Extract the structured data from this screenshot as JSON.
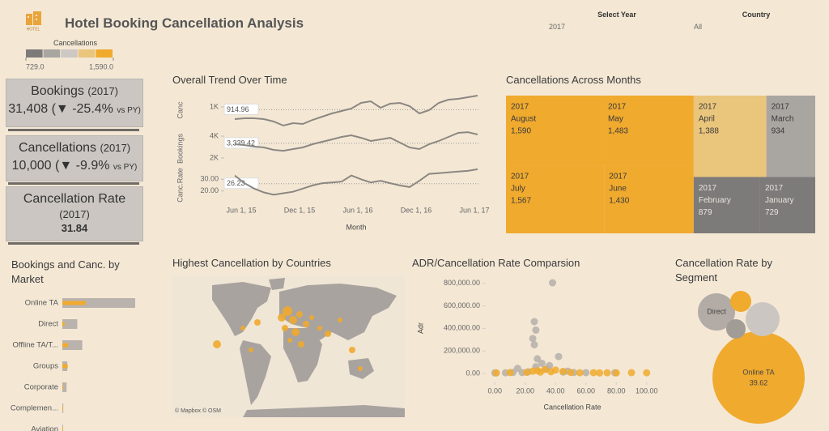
{
  "header": {
    "logo": "HOTEL",
    "title": "Hotel Booking Cancellation Analysis"
  },
  "filters": [
    {
      "label": "Select Year",
      "value": "2017"
    },
    {
      "label": "Country",
      "value": "All"
    }
  ],
  "color_legend": {
    "title": "Cancellations",
    "colors": [
      "#7d7b79",
      "#a9a5a1",
      "#cdc8c3",
      "#eac57c",
      "#f0aa2e"
    ],
    "range": [
      {
        "value": 729,
        "label": "729.0"
      },
      {
        "value": 1590,
        "label": "1,590.0"
      }
    ]
  },
  "kpis": [
    {
      "title": "Bookings",
      "period": "(2017)",
      "value": "31,408",
      "change": "(▼ -25.4%",
      "note": "vs PY)"
    },
    {
      "title": "Cancellations",
      "period": "(2017)",
      "value": "10,000",
      "change": "(▼ -9.9%",
      "note": "vs PY)"
    },
    {
      "title": "Cancellation Rate",
      "period": "(2017)",
      "value": "31.84"
    }
  ],
  "map": {
    "title": "Highest Cancellation by Countries",
    "attribution": "© Mapbox © OSM"
  },
  "chart_data": [
    {
      "type": "line",
      "title": "Overall Trend Over Time",
      "x_label": "Month",
      "color": "#8c8782",
      "categories": [
        "Jun 1, 15",
        null,
        null,
        null,
        null,
        null,
        "Dec 1, 15",
        null,
        null,
        null,
        null,
        null,
        "Jun 1, 16",
        null,
        null,
        null,
        null,
        null,
        "Dec 1, 16",
        null,
        null,
        null,
        null,
        null,
        "Jun 1, 17",
        null
      ],
      "panes": [
        {
          "y_label": "Canc",
          "ylim": [
            300,
            1500
          ],
          "yticks": [
            {
              "value": 1000,
              "label": "1K"
            }
          ],
          "reference": 914.96,
          "values": [
            625,
            650,
            650,
            625,
            550,
            425,
            500,
            475,
            600,
            700,
            800,
            875,
            950,
            1125,
            1175,
            975,
            1100,
            1125,
            1025,
            800,
            900,
            1125,
            1225,
            1250,
            1300,
            1350
          ]
        },
        {
          "y_label": "Bookings",
          "ylim": [
            1250,
            4450
          ],
          "yticks": [
            {
              "value": 2000,
              "label": "2K"
            },
            {
              "value": 4000,
              "label": "4K"
            }
          ],
          "reference": {
            "value": 3339.42,
            "label": "3,339.42"
          },
          "values": [
            3260,
            3180,
            3040,
            2960,
            2740,
            2660,
            2810,
            2960,
            3260,
            3480,
            3700,
            3930,
            4080,
            3850,
            3560,
            3700,
            3850,
            3410,
            2960,
            2810,
            3260,
            3560,
            3930,
            4300,
            4370,
            4150
          ]
        },
        {
          "y_label": "Canc.Rate",
          "ylim": [
            10,
            40
          ],
          "yticks": [
            {
              "value": 20,
              "label": "20.00"
            },
            {
              "value": 30,
              "label": "30.00"
            }
          ],
          "reference": 26.23,
          "values": [
            33.3,
            26.7,
            22,
            18.7,
            16.7,
            18,
            19.3,
            22,
            24.7,
            26.7,
            27.3,
            28,
            33.3,
            30,
            27.3,
            28.7,
            26.7,
            24.7,
            23.3,
            28.7,
            34.7,
            35.3,
            36,
            36.7,
            37.3,
            38.7
          ]
        }
      ]
    },
    {
      "type": "treemap",
      "title": "Cancellations Across Months",
      "year": "2017",
      "categories": [
        "August",
        "May",
        "July",
        "June",
        "April",
        "March",
        "February",
        "January"
      ],
      "values": [
        1590,
        1483,
        1567,
        1430,
        1388,
        934,
        879,
        729
      ],
      "value_labels": [
        "1,590",
        "1,483",
        "1,567",
        "1,430",
        "1,388",
        "934",
        "879",
        "729"
      ]
    },
    {
      "type": "bar",
      "title": "Bookings and Canc. by Market",
      "categories": [
        "Online TA",
        "Direct",
        "Offline TA/T...",
        "Groups",
        "Corporate",
        "Complemen...",
        "Aviation"
      ],
      "series": [
        {
          "color": "#bab3ad",
          "values": [
            19000,
            3900,
            5200,
            1300,
            1100,
            250,
            200
          ]
        },
        {
          "color": "#f0aa2e",
          "values": [
            6100,
            600,
            1500,
            1400,
            250,
            30,
            40
          ]
        }
      ]
    },
    {
      "type": "scatter",
      "title": "ADR/Cancellation Rate Comparsion",
      "x_label": "Cancellation Rate",
      "y_label": "Adr",
      "xlim": [
        -6,
        106
      ],
      "ylim": [
        -65000,
        870000
      ],
      "xticks": [
        {
          "value": 0,
          "label": "0.00"
        },
        {
          "value": 20,
          "label": "20.00"
        },
        {
          "value": 40,
          "label": "40.00"
        },
        {
          "value": 60,
          "label": "60.00"
        },
        {
          "value": 80,
          "label": "80.00"
        },
        {
          "value": 100,
          "label": "100.00"
        }
      ],
      "yticks": [
        {
          "value": 0,
          "label": "0.00"
        },
        {
          "value": 200000,
          "label": "200,000.00"
        },
        {
          "value": 400000,
          "label": "400,000.00"
        },
        {
          "value": 600000,
          "label": "600,000.00"
        },
        {
          "value": 800000,
          "label": "800,000.00"
        }
      ],
      "series": [
        {
          "color": "#b5afa9",
          "x": [
            38,
            26,
            27,
            25,
            26,
            28,
            42,
            27,
            15,
            18,
            0,
            7,
            34,
            48,
            22,
            31,
            36,
            12,
            45,
            52,
            60,
            79
          ],
          "y": [
            805000,
            460000,
            385000,
            310000,
            255000,
            130000,
            150000,
            60000,
            45000,
            8000,
            5000,
            6000,
            40000,
            20000,
            15000,
            90000,
            70000,
            10000,
            12000,
            8000,
            7000,
            6000
          ]
        },
        {
          "color": "#f0aa2e",
          "x": [
            1,
            10,
            21,
            30,
            37,
            50,
            56,
            65,
            69,
            74,
            80,
            90,
            100,
            25,
            33,
            45,
            28,
            40
          ],
          "y": [
            5000,
            8000,
            10000,
            12000,
            15000,
            9000,
            6000,
            7000,
            5000,
            6000,
            5000,
            7000,
            6000,
            20000,
            35000,
            18000,
            25000,
            30000
          ]
        }
      ]
    },
    {
      "type": "bubble",
      "title": "Cancellation Rate by Segment",
      "categories": [
        "Online TA",
        "Direct",
        null,
        null,
        null
      ],
      "values": [
        39.62,
        6.45,
        2.06,
        5.38,
        1.76
      ],
      "colors": [
        "#f0aa2e",
        "#b3aca6",
        "#f0aa2e",
        "#cbc6c1",
        "#a29c96"
      ]
    }
  ]
}
